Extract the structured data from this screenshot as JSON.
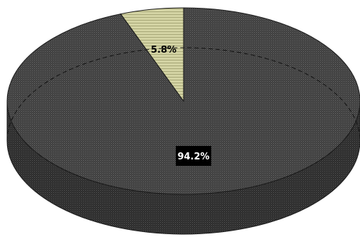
{
  "chart_data": {
    "type": "pie",
    "style": "3d",
    "slices": [
      {
        "value": 94.2,
        "label": "94.2%",
        "color": "#3a3a3a"
      },
      {
        "value": 5.8,
        "label": "5.8%",
        "color": "#cfcf9a"
      }
    ],
    "legend": "none",
    "grid": false
  }
}
